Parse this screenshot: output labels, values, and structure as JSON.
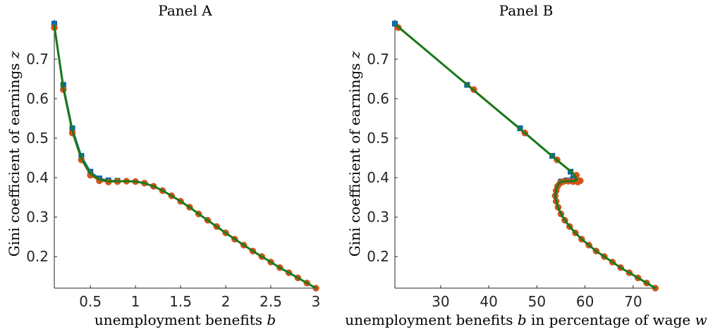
{
  "chart_data": [
    {
      "type": "line",
      "title": "Panel A",
      "xlabel": "unemployment benefits b",
      "ylabel": "Gini coefficient of earnings z",
      "xlim": [
        0.1,
        3.0
      ],
      "ylim": [
        0.12,
        0.8
      ],
      "xticks": [
        0.5,
        1,
        1.5,
        2,
        2.5,
        3
      ],
      "xtick_labels": [
        "0.5",
        "1",
        "1.5",
        "2",
        "2.5",
        "3"
      ],
      "yticks": [
        0.2,
        0.3,
        0.4,
        0.5,
        0.6,
        0.7
      ],
      "ytick_labels": [
        "0.2",
        "0.3",
        "0.4",
        "0.5",
        "0.6",
        "0.7"
      ],
      "grid": false,
      "series": [
        {
          "color": "#0072BD",
          "marker": "square",
          "x": [
            0.1,
            0.2,
            0.3,
            0.4,
            0.5,
            0.6,
            0.7,
            0.8
          ],
          "y": [
            0.79,
            0.635,
            0.525,
            0.455,
            0.415,
            0.398,
            0.393,
            0.392
          ]
        },
        {
          "color": "#D95319",
          "marker": "circle",
          "x": [
            0.1,
            0.2,
            0.3,
            0.4,
            0.5,
            0.6,
            0.7,
            0.8,
            0.9,
            1.0,
            1.1,
            1.2,
            1.3,
            1.4,
            1.5,
            1.6,
            1.7,
            1.8,
            1.9,
            2.0,
            2.1,
            2.2,
            2.3,
            2.4,
            2.5,
            2.6,
            2.7,
            2.8,
            2.9,
            3.0
          ],
          "y": [
            0.78,
            0.623,
            0.513,
            0.445,
            0.406,
            0.392,
            0.389,
            0.39,
            0.391,
            0.39,
            0.386,
            0.378,
            0.367,
            0.354,
            0.34,
            0.325,
            0.308,
            0.292,
            0.276,
            0.26,
            0.244,
            0.229,
            0.214,
            0.2,
            0.186,
            0.172,
            0.159,
            0.146,
            0.133,
            0.12
          ]
        },
        {
          "color": "#1a7a1a",
          "marker": "none",
          "x": [
            0.1,
            0.2,
            0.3,
            0.4,
            0.5,
            0.6,
            0.7,
            0.8,
            0.9,
            1.0,
            1.1,
            1.2,
            1.3,
            1.4,
            1.5,
            1.6,
            1.7,
            1.8,
            1.9,
            2.0,
            2.1,
            2.2,
            2.3,
            2.4,
            2.5,
            2.6,
            2.7,
            2.8,
            2.9,
            3.0
          ],
          "y": [
            0.785,
            0.628,
            0.518,
            0.449,
            0.41,
            0.395,
            0.391,
            0.391,
            0.391,
            0.39,
            0.386,
            0.378,
            0.367,
            0.354,
            0.34,
            0.325,
            0.308,
            0.292,
            0.276,
            0.26,
            0.244,
            0.229,
            0.214,
            0.2,
            0.186,
            0.172,
            0.159,
            0.146,
            0.133,
            0.12
          ]
        }
      ]
    },
    {
      "type": "line",
      "title": "Panel B",
      "xlabel": "unemployment benefits b in percentage of wage w",
      "ylabel": "Gini coefficient of earnings z",
      "xlim": [
        20.5,
        75
      ],
      "ylim": [
        0.12,
        0.8
      ],
      "xticks": [
        30,
        40,
        50,
        60,
        70
      ],
      "xtick_labels": [
        "30",
        "40",
        "50",
        "60",
        "70"
      ],
      "yticks": [
        0.2,
        0.3,
        0.4,
        0.5,
        0.6,
        0.7
      ],
      "ytick_labels": [
        "0.2",
        "0.3",
        "0.4",
        "0.5",
        "0.6",
        "0.7"
      ],
      "grid": false,
      "series": [
        {
          "color": "#0072BD",
          "marker": "square",
          "x": [
            20.5,
            35.5,
            46.5,
            53.2,
            57.0,
            57.5,
            56.2,
            55.0
          ],
          "y": [
            0.79,
            0.635,
            0.525,
            0.455,
            0.415,
            0.398,
            0.393,
            0.39
          ]
        },
        {
          "color": "#D95319",
          "marker": "circle",
          "x": [
            21.2,
            36.9,
            47.5,
            54.2,
            58.2,
            59.0,
            58.5,
            57.5,
            56.5,
            55.5,
            54.8,
            54.3,
            54.0,
            53.8,
            54.0,
            54.4,
            55.0,
            55.8,
            56.8,
            58.0,
            59.3,
            60.8,
            62.3,
            64.0,
            65.7,
            67.4,
            69.2,
            71.0,
            72.8,
            74.6
          ],
          "y": [
            0.78,
            0.623,
            0.513,
            0.445,
            0.406,
            0.392,
            0.389,
            0.39,
            0.391,
            0.39,
            0.386,
            0.378,
            0.367,
            0.354,
            0.34,
            0.325,
            0.308,
            0.292,
            0.276,
            0.26,
            0.244,
            0.229,
            0.214,
            0.2,
            0.186,
            0.172,
            0.159,
            0.146,
            0.133,
            0.12
          ]
        },
        {
          "color": "#1a7a1a",
          "marker": "none",
          "x": [
            20.9,
            36.2,
            47.0,
            53.7,
            57.6,
            58.3,
            57.6,
            56.8,
            56.0,
            55.2,
            54.6,
            54.2,
            54.0,
            53.8,
            54.0,
            54.4,
            55.0,
            55.8,
            56.8,
            58.0,
            59.3,
            60.8,
            62.3,
            64.0,
            65.7,
            67.4,
            69.2,
            71.0,
            72.8,
            74.6
          ],
          "y": [
            0.785,
            0.628,
            0.518,
            0.449,
            0.41,
            0.395,
            0.391,
            0.391,
            0.391,
            0.39,
            0.386,
            0.378,
            0.367,
            0.354,
            0.34,
            0.325,
            0.308,
            0.292,
            0.276,
            0.26,
            0.244,
            0.229,
            0.214,
            0.2,
            0.186,
            0.172,
            0.159,
            0.146,
            0.133,
            0.12
          ]
        }
      ]
    }
  ]
}
